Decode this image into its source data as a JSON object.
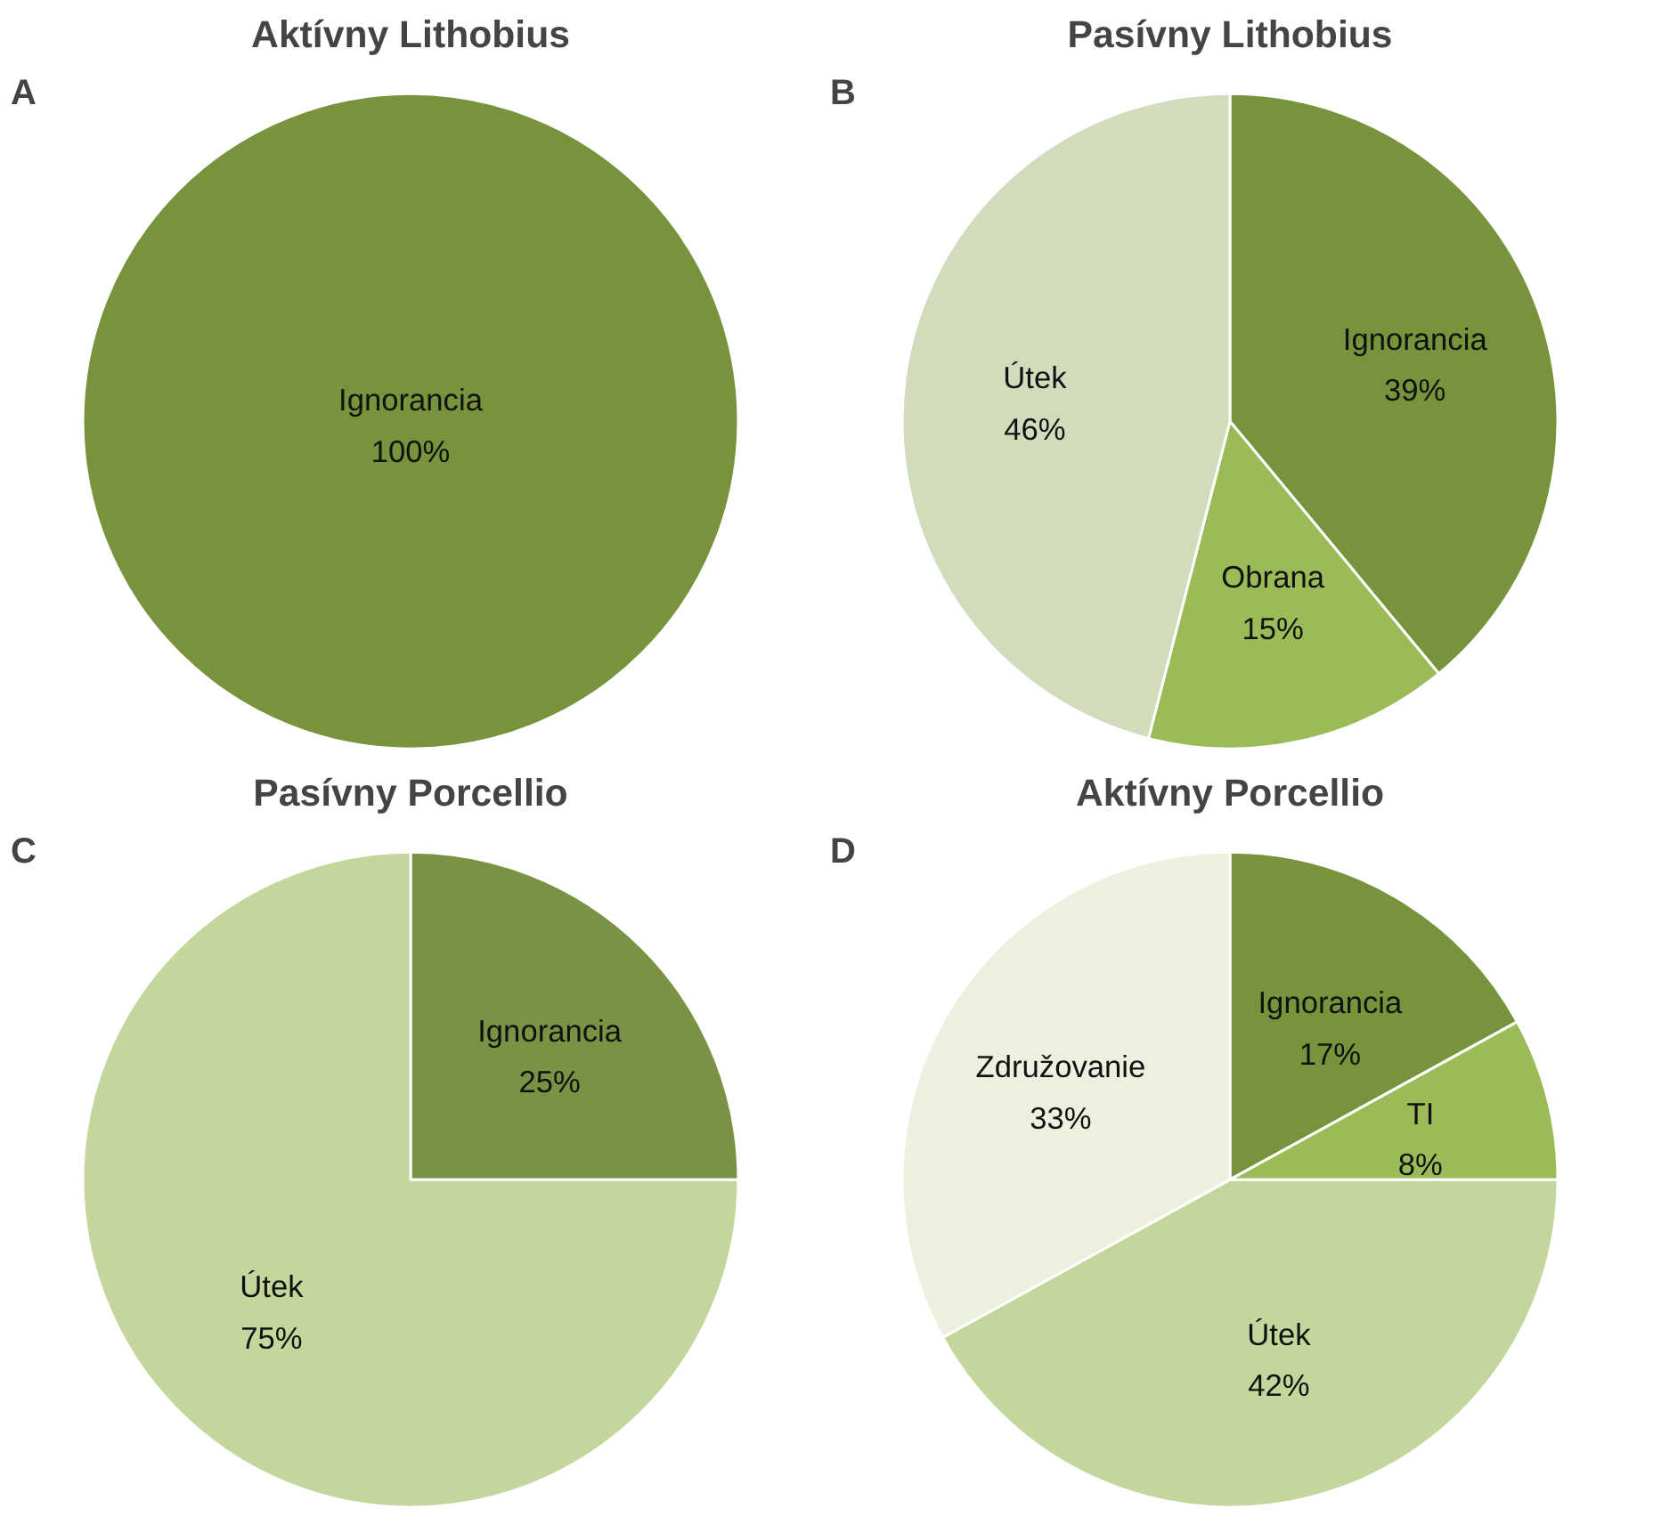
{
  "chart_data": [
    {
      "type": "pie",
      "title": "Aktívny Lithobius",
      "annotations": [
        "A"
      ],
      "categories": [
        "Ignorancia"
      ],
      "values": [
        100
      ],
      "value_labels": [
        "100%"
      ],
      "colors": [
        "#77933c"
      ]
    },
    {
      "type": "pie",
      "title": "Pasívny Lithobius",
      "annotations": [
        "B"
      ],
      "categories": [
        "Ignorancia",
        "Obrana",
        "Útek"
      ],
      "values": [
        39,
        15,
        46
      ],
      "value_labels": [
        "39%",
        "15%",
        "46%"
      ],
      "colors": [
        "#77933c",
        "#9bbb59",
        "#d0dcbc"
      ]
    },
    {
      "type": "pie",
      "title": "Pasívny Porcellio",
      "annotations": [
        "C"
      ],
      "categories": [
        "Ignorancia",
        "Útek"
      ],
      "values": [
        25,
        75
      ],
      "value_labels": [
        "25%",
        "75%"
      ],
      "colors": [
        "#7a9244",
        "#c3d69b"
      ]
    },
    {
      "type": "pie",
      "title": "Aktívny Porcellio",
      "annotations": [
        "D"
      ],
      "categories": [
        "Ignorancia",
        "TI",
        "Útek",
        "Združovanie"
      ],
      "values": [
        17,
        8,
        42,
        33
      ],
      "value_labels": [
        "17%",
        "8%",
        "42%",
        "33%"
      ],
      "colors": [
        "#77933c",
        "#9bbb59",
        "#c3d69b",
        "#ebf1de"
      ]
    }
  ]
}
